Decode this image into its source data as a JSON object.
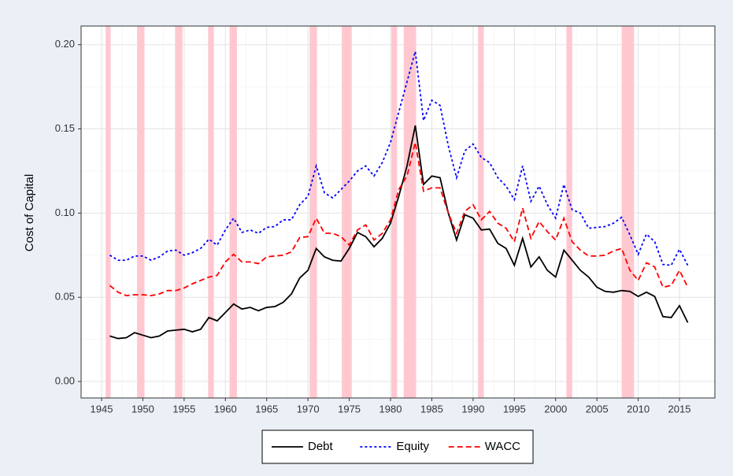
{
  "chart_data": {
    "type": "line",
    "ylabel": "Cost of Capital",
    "x": [
      1946,
      1947,
      1948,
      1949,
      1950,
      1951,
      1952,
      1953,
      1954,
      1955,
      1956,
      1957,
      1958,
      1959,
      1960,
      1961,
      1962,
      1963,
      1964,
      1965,
      1966,
      1967,
      1968,
      1969,
      1970,
      1971,
      1972,
      1973,
      1974,
      1975,
      1976,
      1977,
      1978,
      1979,
      1980,
      1981,
      1982,
      1983,
      1984,
      1985,
      1986,
      1987,
      1988,
      1989,
      1990,
      1991,
      1992,
      1993,
      1994,
      1995,
      1996,
      1997,
      1998,
      1999,
      2000,
      2001,
      2002,
      2003,
      2004,
      2005,
      2006,
      2007,
      2008,
      2009,
      2010,
      2011,
      2012,
      2013,
      2014,
      2015,
      2016
    ],
    "series": [
      {
        "name": "Debt",
        "color": "#000000",
        "linestyle": "solid",
        "values": [
          0.027,
          0.0255,
          0.026,
          0.029,
          0.0275,
          0.026,
          0.027,
          0.03,
          0.0305,
          0.031,
          0.0295,
          0.031,
          0.038,
          0.036,
          0.041,
          0.046,
          0.043,
          0.044,
          0.042,
          0.044,
          0.0445,
          0.047,
          0.052,
          0.0615,
          0.066,
          0.079,
          0.074,
          0.072,
          0.0715,
          0.079,
          0.0885,
          0.086,
          0.08,
          0.085,
          0.094,
          0.11,
          0.128,
          0.152,
          0.117,
          0.122,
          0.121,
          0.1,
          0.084,
          0.099,
          0.097,
          0.09,
          0.0905,
          0.082,
          0.079,
          0.069,
          0.085,
          0.068,
          0.074,
          0.066,
          0.062,
          0.078,
          0.072,
          0.066,
          0.062,
          0.056,
          0.0535,
          0.053,
          0.054,
          0.0535,
          0.0505,
          0.053,
          0.0505,
          0.0385,
          0.038,
          0.045,
          0.035
        ]
      },
      {
        "name": "Equity",
        "color": "#0000ff",
        "linestyle": "dotted",
        "values": [
          0.075,
          0.072,
          0.072,
          0.0745,
          0.0745,
          0.072,
          0.074,
          0.0775,
          0.078,
          0.075,
          0.0765,
          0.079,
          0.0845,
          0.081,
          0.09,
          0.097,
          0.0885,
          0.09,
          0.088,
          0.0915,
          0.092,
          0.096,
          0.096,
          0.105,
          0.11,
          0.128,
          0.112,
          0.109,
          0.114,
          0.119,
          0.125,
          0.128,
          0.122,
          0.13,
          0.142,
          0.16,
          0.178,
          0.196,
          0.155,
          0.167,
          0.164,
          0.14,
          0.121,
          0.137,
          0.141,
          0.133,
          0.13,
          0.121,
          0.116,
          0.108,
          0.128,
          0.107,
          0.116,
          0.105,
          0.097,
          0.117,
          0.102,
          0.1,
          0.091,
          0.0915,
          0.092,
          0.094,
          0.0975,
          0.087,
          0.0755,
          0.0875,
          0.083,
          0.0695,
          0.069,
          0.0785,
          0.069
        ]
      },
      {
        "name": "WACC",
        "color": "#ff0000",
        "linestyle": "dashed",
        "values": [
          0.057,
          0.053,
          0.051,
          0.0515,
          0.0515,
          0.051,
          0.052,
          0.054,
          0.054,
          0.0555,
          0.058,
          0.06,
          0.062,
          0.063,
          0.071,
          0.0755,
          0.071,
          0.071,
          0.07,
          0.074,
          0.0745,
          0.075,
          0.077,
          0.0855,
          0.086,
          0.097,
          0.088,
          0.088,
          0.086,
          0.081,
          0.09,
          0.093,
          0.084,
          0.088,
          0.096,
          0.114,
          0.122,
          0.142,
          0.113,
          0.115,
          0.115,
          0.1,
          0.088,
          0.101,
          0.105,
          0.096,
          0.101,
          0.094,
          0.091,
          0.083,
          0.103,
          0.085,
          0.095,
          0.089,
          0.084,
          0.097,
          0.083,
          0.078,
          0.0745,
          0.0745,
          0.075,
          0.0775,
          0.079,
          0.066,
          0.06,
          0.0705,
          0.068,
          0.056,
          0.057,
          0.066,
          0.056
        ]
      }
    ],
    "recessions": [
      [
        1945.5,
        1946.1
      ],
      [
        1949.3,
        1950.2
      ],
      [
        1953.9,
        1954.8
      ],
      [
        1957.9,
        1958.6
      ],
      [
        1960.5,
        1961.4
      ],
      [
        1970.2,
        1971.1
      ],
      [
        1974.1,
        1975.3
      ],
      [
        1980.1,
        1980.8
      ],
      [
        1981.6,
        1983.1
      ],
      [
        1990.6,
        1991.3
      ],
      [
        2001.3,
        2002.0
      ],
      [
        2008.0,
        2009.5
      ]
    ],
    "recession_color": "#ffc8d0",
    "xlim": [
      1942.52,
      2019.29
    ],
    "xticks": [
      1945,
      1950,
      1955,
      1960,
      1965,
      1970,
      1975,
      1980,
      1985,
      1990,
      1995,
      2000,
      2005,
      2010,
      2015
    ],
    "ylim": [
      -0.0098,
      0.2111
    ],
    "yticks": [
      {
        "value": 0,
        "label": "0.00"
      },
      {
        "value": 0.05,
        "label": "0.05"
      },
      {
        "value": 0.1,
        "label": "0.10"
      },
      {
        "value": 0.15,
        "label": "0.15"
      },
      {
        "value": 0.2,
        "label": "0.20"
      }
    ],
    "grid": true,
    "legend": "bottom"
  }
}
